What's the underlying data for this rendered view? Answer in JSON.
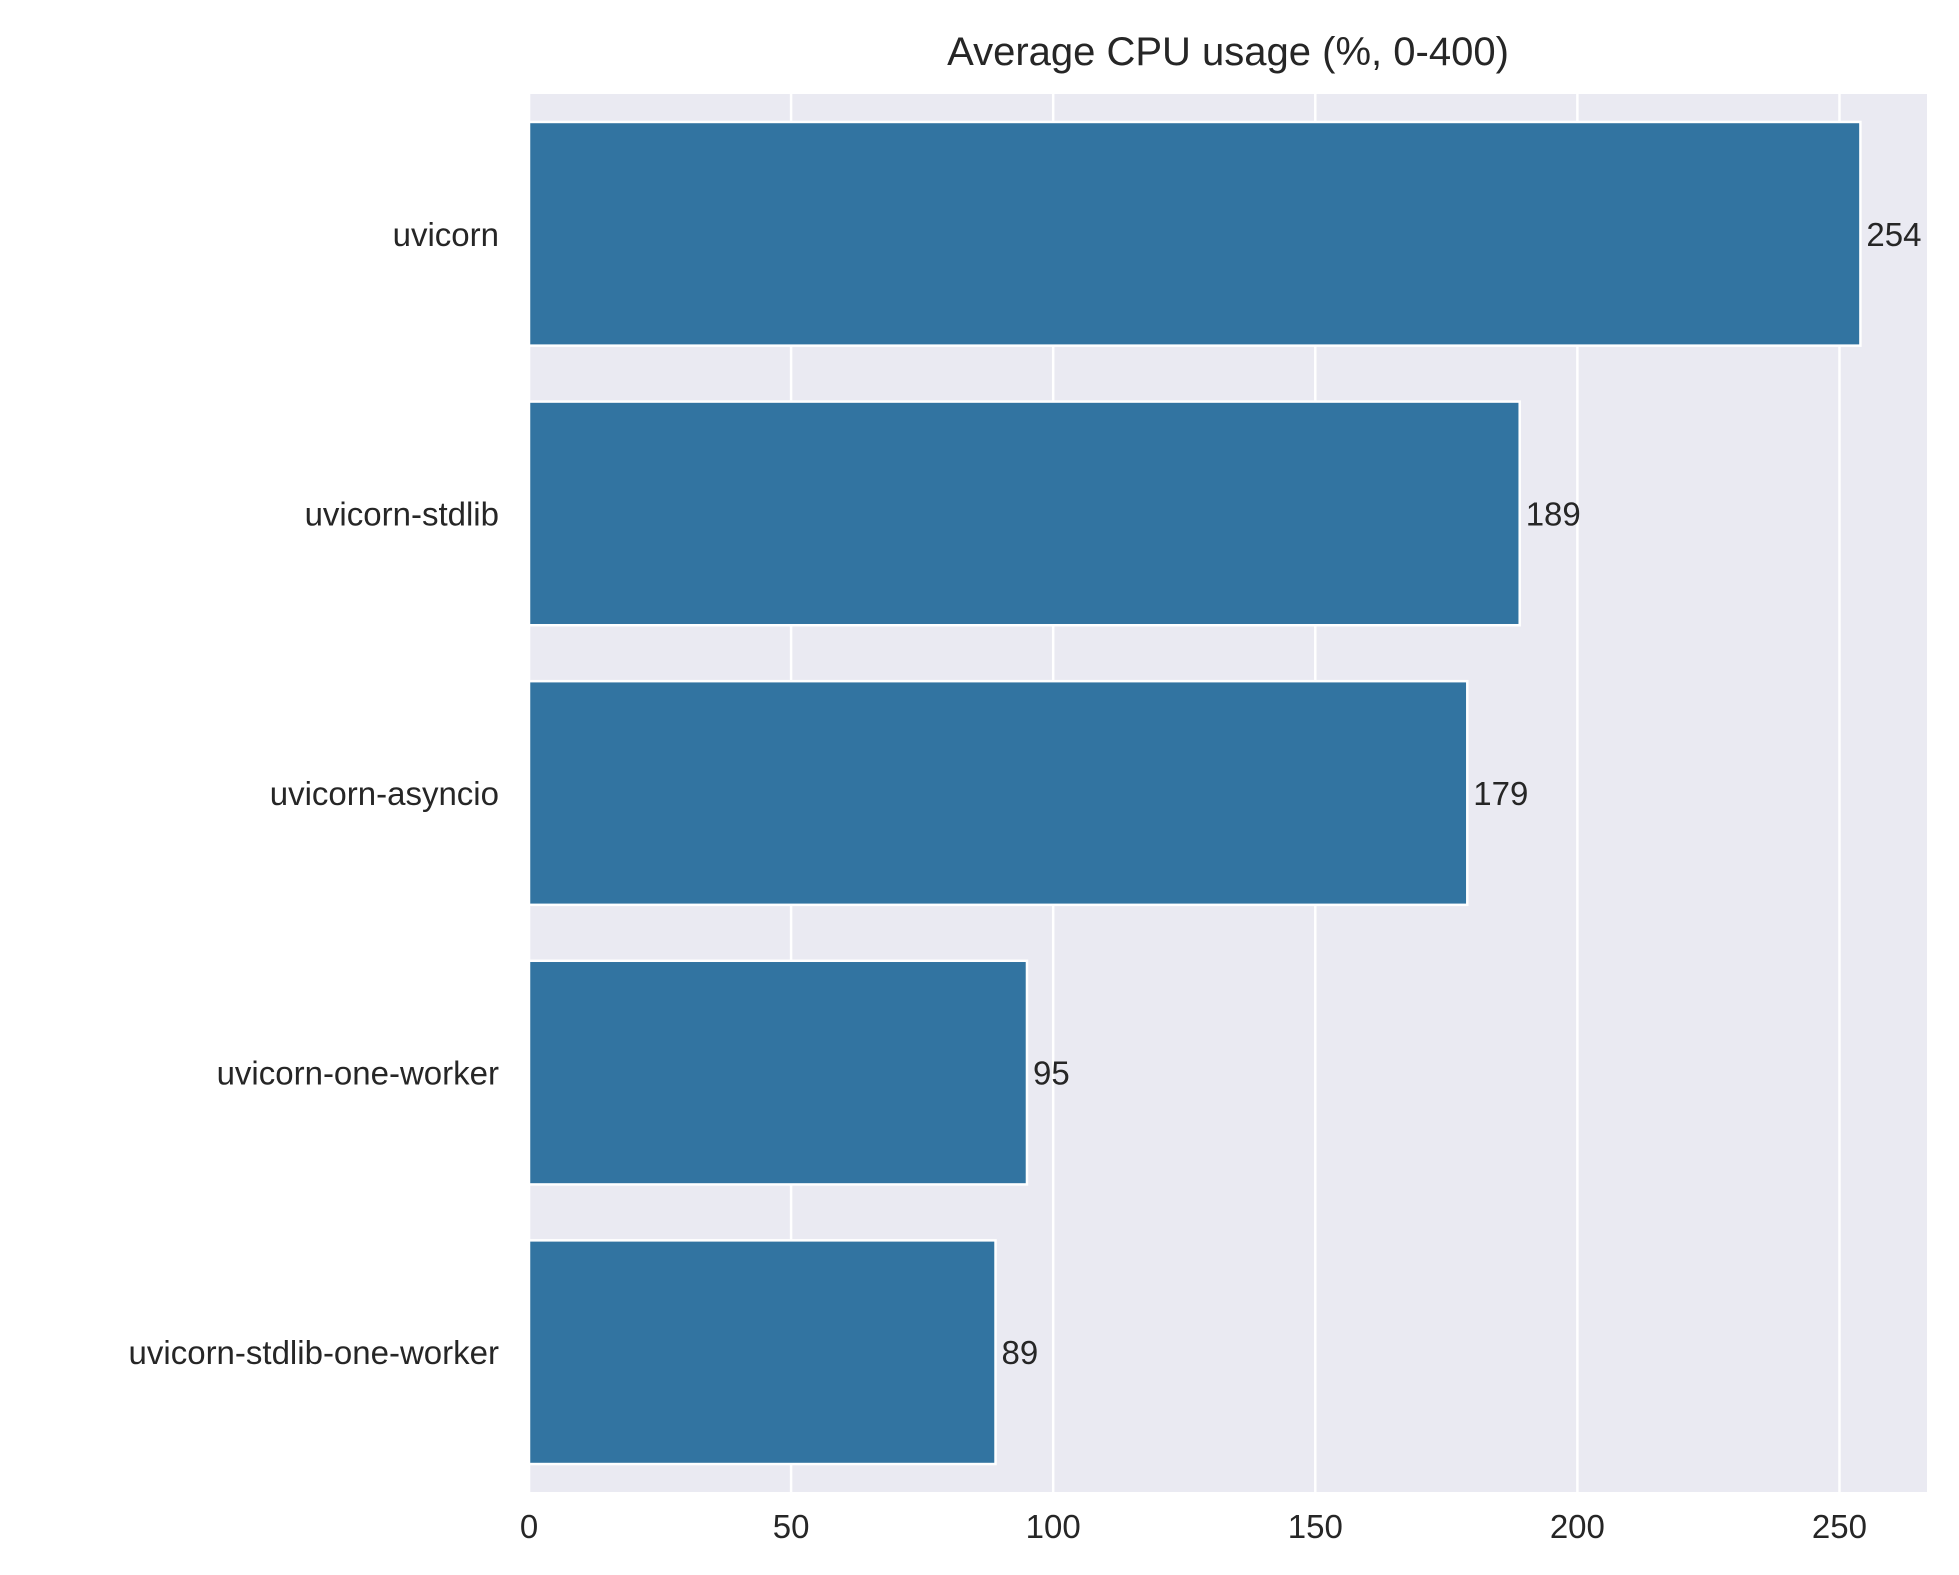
{
  "chart_data": {
    "type": "bar",
    "orientation": "horizontal",
    "title": "Average CPU usage (%, 0-400)",
    "xlabel": "",
    "ylabel": "",
    "categories": [
      "uvicorn",
      "uvicorn-stdlib",
      "uvicorn-asyncio",
      "uvicorn-one-worker",
      "uvicorn-stdlib-one-worker"
    ],
    "values": [
      254,
      189,
      179,
      95,
      89
    ],
    "data_labels": [
      "254",
      "189",
      "179",
      "95",
      "89"
    ],
    "xticks": [
      0,
      50,
      100,
      150,
      200,
      250
    ],
    "xlim": [
      0,
      266.7
    ],
    "grid": true,
    "legend": "none",
    "colors": {
      "bar": "#3274a1",
      "plot_background": "#eaeaf2",
      "grid": "#ffffff",
      "text": "#262626"
    }
  }
}
